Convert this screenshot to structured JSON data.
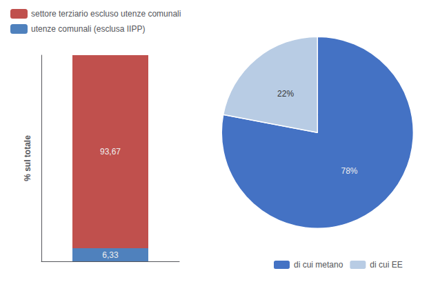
{
  "chart_data": [
    {
      "type": "bar",
      "stacked": true,
      "ylabel": "% sul totale",
      "categories": [
        null
      ],
      "series": [
        {
          "name": "settore terziario escluso utenze comunali",
          "color": "#c0504d",
          "values": [
            93.67
          ],
          "value_labels": [
            "93,67"
          ]
        },
        {
          "name": "utenze comunali (esclusa IIPP)",
          "color": "#4f81bd",
          "values": [
            6.33
          ],
          "value_labels": [
            "6,33"
          ]
        }
      ],
      "ylim": [
        0,
        100
      ],
      "tick_labels": false,
      "grid": false,
      "data_labels": true,
      "legend": "upper left"
    },
    {
      "type": "pie",
      "categories": [
        "di cui metano",
        "di cui EE"
      ],
      "values": [
        78,
        22
      ],
      "value_labels": [
        "78%",
        "22%"
      ],
      "colors": [
        "#4472c4",
        "#b8cce4"
      ],
      "data_labels": true,
      "legend": "bottom"
    }
  ]
}
